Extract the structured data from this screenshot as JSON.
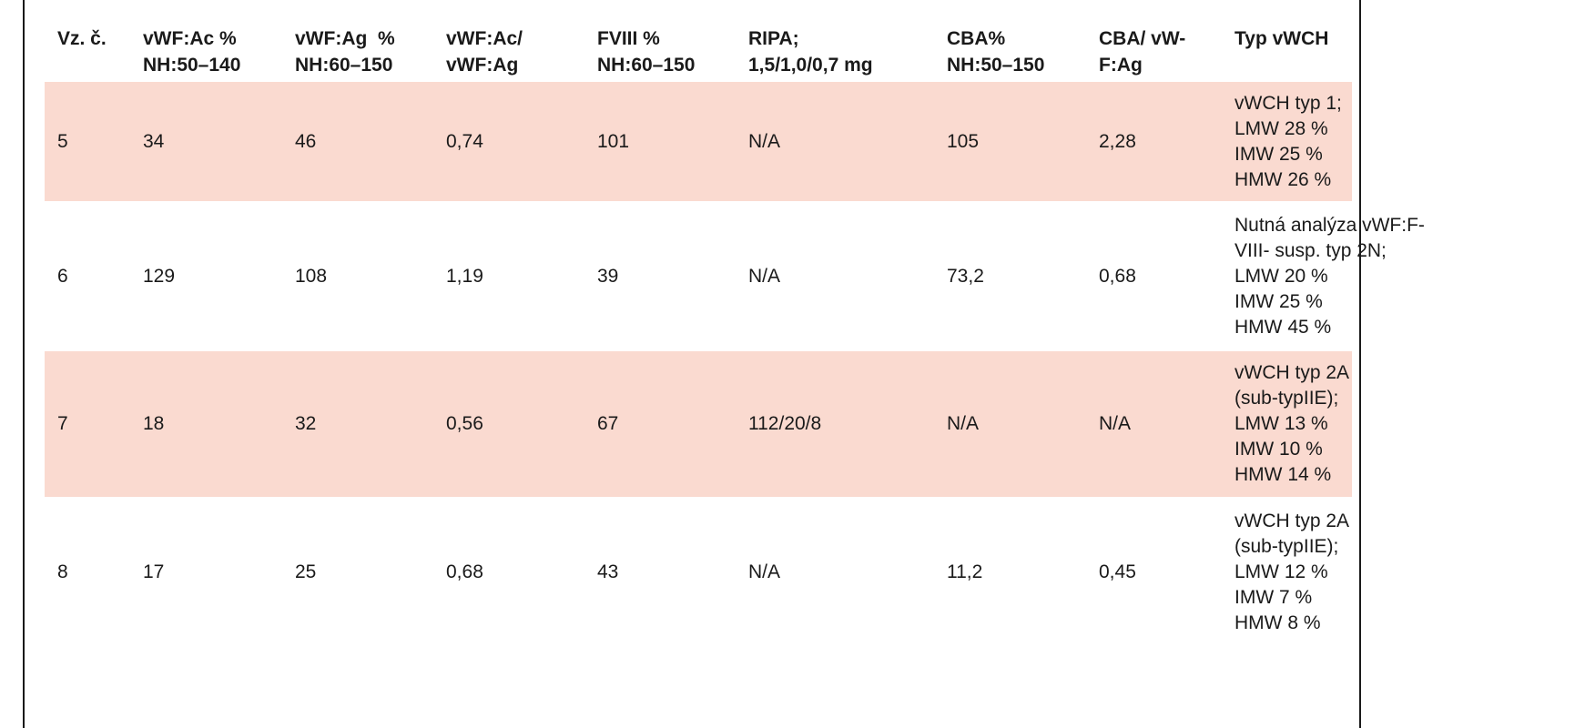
{
  "headers": [
    [
      "Vz. č."
    ],
    [
      "vWF:Ac %",
      "NH:50–140"
    ],
    [
      "vWF:Ag  %",
      "NH:60–150"
    ],
    [
      "vWF:Ac/",
      "vWF:Ag"
    ],
    [
      "FVIII %",
      "NH:60–150"
    ],
    [
      "RIPA;",
      "1,5/1,0/0,7 mg"
    ],
    [
      "CBA%",
      "NH:50–150"
    ],
    [
      "CBA/ vW-",
      "F:Ag"
    ],
    [
      "Typ vWCH"
    ]
  ],
  "rows": [
    {
      "id": "5",
      "ac": "34",
      "ag": "46",
      "ratio": "0,74",
      "fviii": "101",
      "ripa": "N/A",
      "cba": "105",
      "cba_ag": "2,28",
      "type": [
        "vWCH typ 1;",
        "LMW 28 %",
        "IMW 25 %",
        "HMW 26 %"
      ]
    },
    {
      "id": "6",
      "ac": "129",
      "ag": "108",
      "ratio": "1,19",
      "fviii": "39",
      "ripa": "N/A",
      "cba": "73,2",
      "cba_ag": "0,68",
      "type": [
        "Nutná analýza vWF:F-",
        "VIII- susp. typ 2N;",
        "LMW 20 %",
        "IMW 25 %",
        "HMW 45 %"
      ]
    },
    {
      "id": "7",
      "ac": "18",
      "ag": "32",
      "ratio": "0,56",
      "fviii": "67",
      "ripa": "112/20/8",
      "cba": "N/A",
      "cba_ag": "N/A",
      "type": [
        "vWCH typ 2A",
        "(sub-typIIE);",
        "LMW 13 %",
        "IMW 10 %",
        "HMW 14 %"
      ]
    },
    {
      "id": "8",
      "ac": "17",
      "ag": "25",
      "ratio": "0,68",
      "fviii": "43",
      "ripa": "N/A",
      "cba": "11,2",
      "cba_ag": "0,45",
      "type": [
        "vWCH typ 2A",
        "(sub-typIIE);",
        "LMW 12 %",
        "IMW 7 %",
        "HMW 8 %"
      ]
    }
  ],
  "colors": {
    "shaded_row": "#fadad0",
    "text": "#1a1a1a",
    "border": "#1a1a1a"
  }
}
